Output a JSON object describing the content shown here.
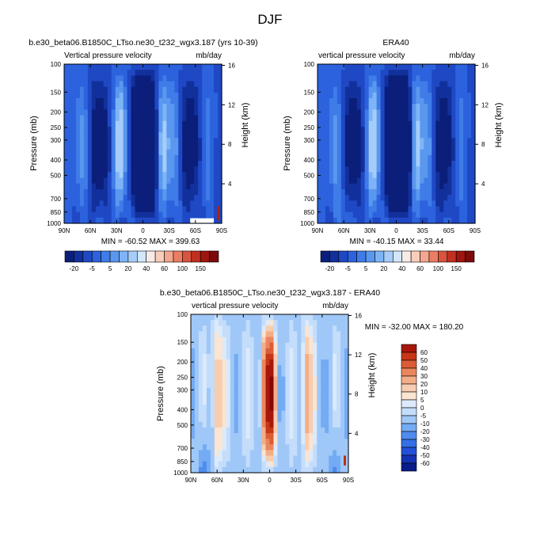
{
  "figure": {
    "title": "DJF"
  },
  "colors": {
    "model_obs_palette": [
      "#0a1e7a",
      "#12309b",
      "#1f48c4",
      "#2c62dd",
      "#3f7ce8",
      "#5a98ef",
      "#7eb4f5",
      "#a6cdf9",
      "#d2e6fc",
      "#f7ebe6",
      "#f8cdbb",
      "#f4a68e",
      "#ea7d63",
      "#d9533e",
      "#c1301f",
      "#a0150f",
      "#7b0a0a"
    ],
    "diff_palette": [
      "#0a1c88",
      "#1432b4",
      "#2250d8",
      "#3470e6",
      "#4f8cee",
      "#73abf4",
      "#9fc8f8",
      "#c4ddfb",
      "#dbeafc",
      "#fbe4d0",
      "#f7cdb0",
      "#f3ae88",
      "#ea865e",
      "#dc5c36",
      "#c73616",
      "#a8160a",
      "#860606"
    ],
    "panel_border": "#000000"
  },
  "chart_data": [
    {
      "type": "heatmap",
      "panel": "model",
      "title": "b.e30_beta06.B1850C_LTso.ne30_t232_wgx3.187 (yrs 10-39)",
      "left_label": "Vertical pressure velocity",
      "right_label": "mb/day",
      "xlabel": "",
      "ylabel": "Pressure (mb)",
      "y2label": "Height (km)",
      "x_ticks": [
        "90N",
        "60N",
        "30N",
        "0",
        "30S",
        "60S",
        "90S"
      ],
      "y_ticks": [
        "100",
        "150",
        "200",
        "250",
        "300",
        "400",
        "500",
        "700",
        "850",
        "1000"
      ],
      "y2_ticks": [
        "16",
        "12",
        "8",
        "4"
      ],
      "ylim": [
        100,
        1000
      ],
      "y_scale": "log, reversed",
      "stats_text": "MIN = -60.52  MAX = 399.63",
      "min": -60.52,
      "max": 399.63,
      "colorbar_labels": [
        "-20",
        "-5",
        "5",
        "20",
        "40",
        "60",
        "100",
        "150"
      ],
      "colorbar_orientation": "horizontal",
      "ascent_bands_x": [
        -4,
        8
      ],
      "descent_bands_x": [
        -25,
        20,
        27
      ]
    },
    {
      "type": "heatmap",
      "panel": "obs",
      "title": "ERA40",
      "left_label": "vertical pressure velocity",
      "right_label": "mb/day",
      "xlabel": "",
      "ylabel": "Pressure (mb)",
      "y2label": "Height (km)",
      "x_ticks": [
        "90N",
        "60N",
        "30N",
        "0",
        "30S",
        "60S",
        "90S"
      ],
      "y_ticks": [
        "100",
        "150",
        "200",
        "250",
        "300",
        "400",
        "500",
        "700",
        "850",
        "1000"
      ],
      "y2_ticks": [
        "16",
        "12",
        "8",
        "4"
      ],
      "ylim": [
        100,
        1000
      ],
      "y_scale": "log, reversed",
      "stats_text": "MIN = -40.15  MAX = 33.44",
      "min": -40.15,
      "max": 33.44,
      "colorbar_labels": [
        "-20",
        "-5",
        "5",
        "20",
        "40",
        "60",
        "100",
        "150"
      ],
      "colorbar_orientation": "horizontal",
      "ascent_bands_x": [
        -4,
        8
      ],
      "descent_bands_x": [
        -25,
        20,
        27
      ]
    },
    {
      "type": "heatmap",
      "panel": "difference",
      "title": "b.e30_beta06.B1850C_LTso.ne30_t232_wgx3.187 - ERA40",
      "left_label": "vertical pressure velocity",
      "right_label": "mb/day",
      "xlabel": "",
      "ylabel": "Pressure (mb)",
      "y2label": "Height (km)",
      "x_ticks": [
        "90N",
        "60N",
        "30N",
        "0",
        "30S",
        "60S",
        "90S"
      ],
      "y_ticks": [
        "100",
        "150",
        "200",
        "250",
        "300",
        "400",
        "500",
        "700",
        "850",
        "1000"
      ],
      "y2_ticks": [
        "16",
        "12",
        "8",
        "4"
      ],
      "ylim": [
        100,
        1000
      ],
      "y_scale": "log, reversed",
      "stats_text": "MIN = -32.00  MAX = 180.20",
      "min": -32.0,
      "max": 180.2,
      "colorbar_labels": [
        "60",
        "50",
        "40",
        "30",
        "20",
        "10",
        "5",
        "0",
        "-5",
        "-10",
        "-20",
        "-30",
        "-40",
        "-50",
        "-60"
      ],
      "colorbar_orientation": "vertical",
      "positive_bands_x": [
        -60,
        -3,
        3,
        42
      ],
      "negative_bands_x": [
        -75,
        75
      ]
    }
  ]
}
